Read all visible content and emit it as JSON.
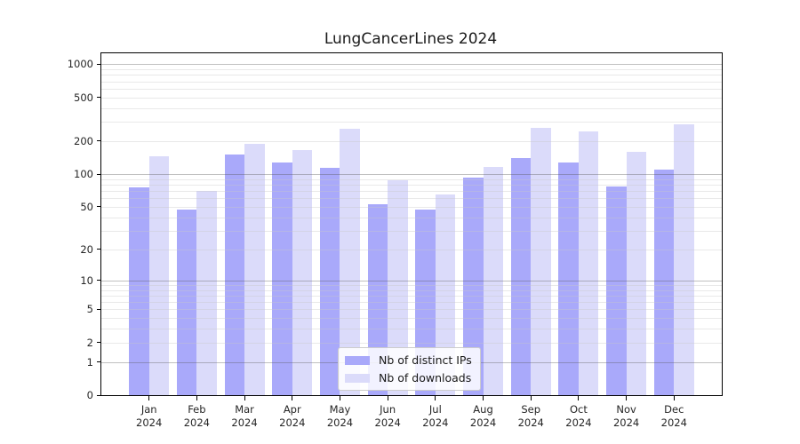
{
  "figure": {
    "background": "#ffffff",
    "text_color": "#262626"
  },
  "chart_data": {
    "type": "bar",
    "title": "LungCancerLines 2024",
    "xlabel": "",
    "ylabel": "",
    "yscale": "log1p",
    "ylim": [
      0,
      1259
    ],
    "grid": true,
    "legend_position": "lower center",
    "categories": [
      "Jan",
      "Feb",
      "Mar",
      "Apr",
      "May",
      "Jun",
      "Jul",
      "Aug",
      "Sep",
      "Oct",
      "Nov",
      "Dec"
    ],
    "category_year": "2024",
    "yticks": [
      0,
      1,
      2,
      5,
      10,
      20,
      50,
      100,
      200,
      500,
      1000
    ],
    "grid_major": [
      1,
      10,
      100,
      1000
    ],
    "grid_minor": [
      2,
      3,
      4,
      5,
      6,
      7,
      8,
      9,
      20,
      30,
      40,
      50,
      60,
      70,
      80,
      90,
      200,
      300,
      400,
      500,
      600,
      700,
      800,
      900
    ],
    "series": [
      {
        "name": "Nb of distinct IPs",
        "color": "#A9A9FA",
        "values": [
          75,
          47,
          152,
          127,
          115,
          53,
          47,
          93,
          140,
          127,
          77,
          110
        ]
      },
      {
        "name": "Nb of downloads",
        "color": "#DBDBFA",
        "values": [
          145,
          70,
          190,
          165,
          260,
          88,
          65,
          116,
          265,
          245,
          160,
          285
        ]
      }
    ]
  }
}
